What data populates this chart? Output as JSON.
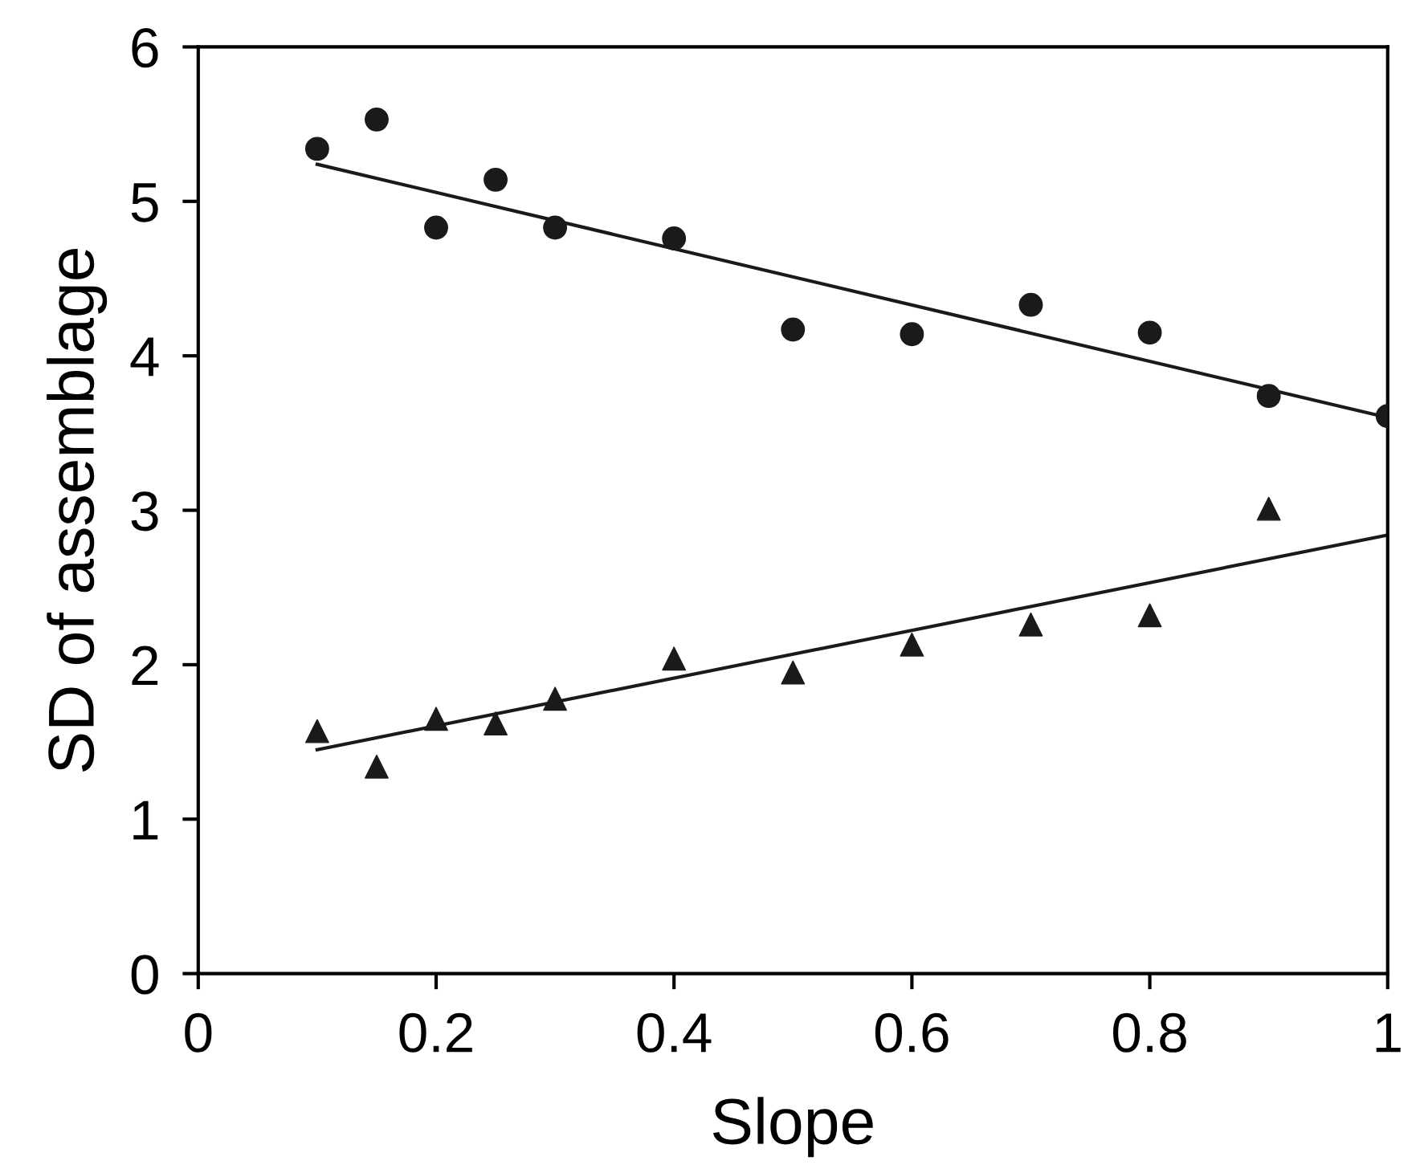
{
  "chart_data": {
    "type": "scatter",
    "xlabel": "Slope",
    "ylabel": "SD of assemblage",
    "xlim": [
      0,
      1
    ],
    "ylim": [
      0,
      6
    ],
    "xticks": [
      0,
      0.2,
      0.4,
      0.6,
      0.8,
      1
    ],
    "yticks": [
      0,
      1,
      2,
      3,
      4,
      5,
      6
    ],
    "grid": false,
    "legend": false,
    "series": [
      {
        "marker": "circle",
        "color": "#1a1a1a",
        "x": [
          0.1,
          0.15,
          0.2,
          0.25,
          0.3,
          0.4,
          0.5,
          0.6,
          0.7,
          0.8,
          0.9,
          1.0
        ],
        "values": [
          5.34,
          5.53,
          4.83,
          5.14,
          4.83,
          4.76,
          4.17,
          4.14,
          4.33,
          4.15,
          3.74,
          3.61
        ]
      },
      {
        "marker": "triangle",
        "color": "#1a1a1a",
        "x": [
          0.1,
          0.15,
          0.2,
          0.25,
          0.3,
          0.4,
          0.5,
          0.6,
          0.7,
          0.8,
          0.9
        ],
        "values": [
          1.57,
          1.34,
          1.65,
          1.62,
          1.78,
          2.04,
          1.95,
          2.13,
          2.26,
          2.32,
          3.01
        ]
      },
      {
        "type": "line",
        "marker": "none",
        "line_style": "solid",
        "color": "#1a1a1a",
        "x": [
          0.1,
          1.0
        ],
        "values": [
          5.24,
          3.6
        ]
      },
      {
        "type": "line",
        "marker": "none",
        "line_style": "solid",
        "color": "#1a1a1a",
        "x": [
          0.1,
          1.0
        ],
        "values": [
          1.45,
          2.84
        ]
      }
    ]
  }
}
